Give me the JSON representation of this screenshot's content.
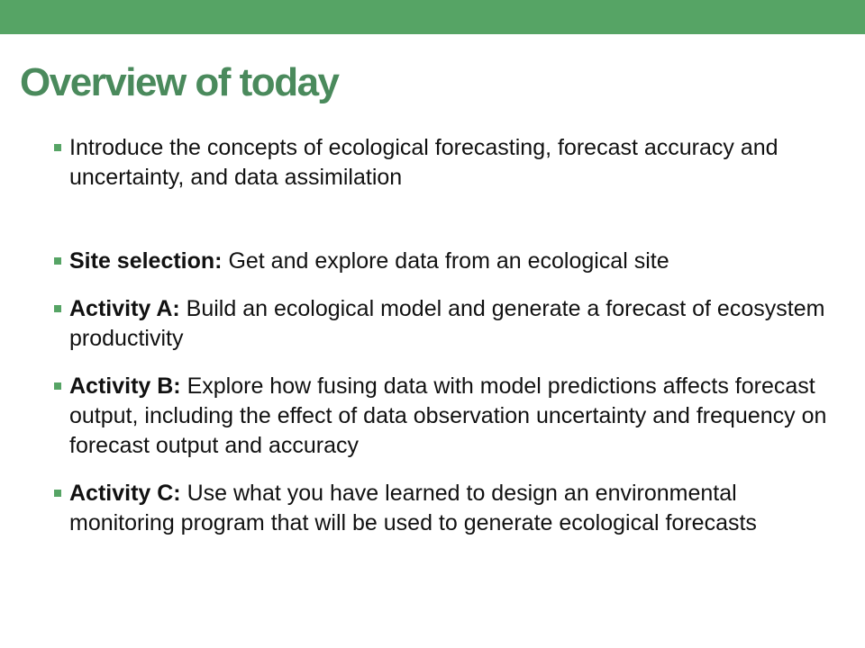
{
  "colors": {
    "accent_bar": "#56a465",
    "title": "#4a8a5c",
    "bullet_marker": "#56a465",
    "body_text": "#111111"
  },
  "icons": {
    "bullet": "square-bullet-icon"
  },
  "slide": {
    "title": "Overview of today",
    "bullets": [
      {
        "lead": "",
        "text": "Introduce the concepts of ecological forecasting, forecast accuracy and uncertainty, and data assimilation"
      },
      {
        "lead": "Site selection:",
        "text": " Get and explore data from an ecological site"
      },
      {
        "lead": "Activity A:",
        "text": " Build an ecological model and generate a forecast of ecosystem productivity"
      },
      {
        "lead": "Activity B:",
        "text": " Explore how fusing data with model predictions affects forecast output, including the effect of data observation uncertainty and frequency on forecast output and accuracy"
      },
      {
        "lead": "Activity C:",
        "text": " Use what you have learned to design an environmental monitoring program that will be used to generate ecological forecasts"
      }
    ]
  }
}
